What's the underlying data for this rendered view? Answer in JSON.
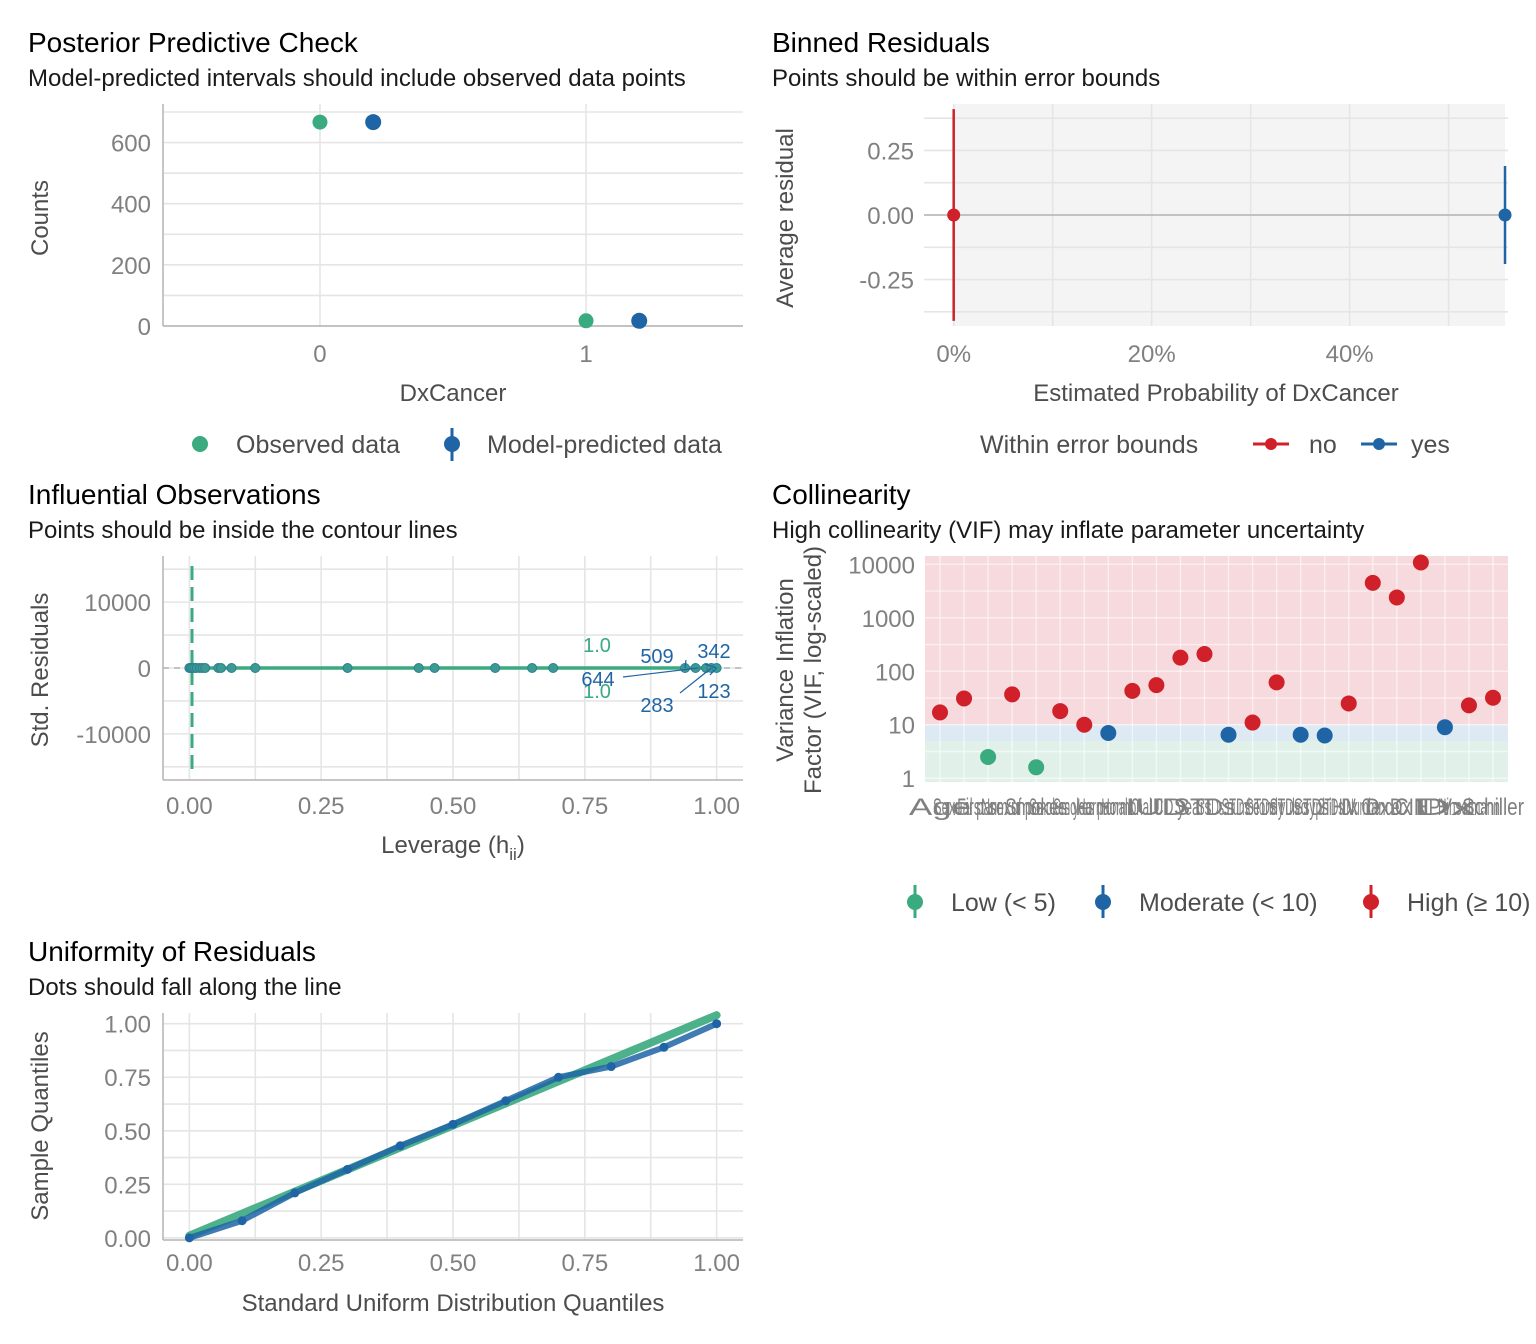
{
  "colors": {
    "green": "#3aaa7f",
    "blue": "#1f65a6",
    "red": "#d0202a",
    "grid": "#e5e5e5",
    "axis": "#b3b3b3",
    "high_zone": "#f7dadd",
    "moderate_zone": "#dde9f3",
    "low_zone": "#e1f1ea",
    "panel_bg": "#f4f4f4"
  },
  "chart_data": [
    {
      "id": "ppc",
      "type": "scatter",
      "title": "Posterior Predictive Check",
      "subtitle": "Model-predicted intervals should include observed data points",
      "xlabel": "DxCancer",
      "ylabel": "Counts",
      "categories": [
        "0",
        "1"
      ],
      "ylim": [
        0,
        700
      ],
      "yticks": [
        0,
        200,
        400,
        600
      ],
      "series": [
        {
          "name": "Observed data",
          "values": [
            667,
            17
          ]
        },
        {
          "name": "Model-predicted data",
          "values": [
            667,
            17
          ]
        }
      ],
      "legend": "bottom",
      "grid": true
    },
    {
      "id": "binned",
      "type": "scatter",
      "title": "Binned Residuals",
      "subtitle": "Points should be within error bounds",
      "xlabel": "Estimated Probability of DxCancer",
      "ylabel": "Average residual",
      "xlim": [
        -0.03,
        0.56
      ],
      "ylim": [
        -0.43,
        0.43
      ],
      "xticks": [
        0,
        0.2,
        0.4
      ],
      "xtick_labels": [
        "0%",
        "20%",
        "40%"
      ],
      "yticks": [
        -0.25,
        0,
        0.25
      ],
      "ytick_labels": [
        "-0.25",
        "0.00",
        "0.25"
      ],
      "legend_title": "Within error bounds",
      "legend_items": [
        "no",
        "yes"
      ],
      "points": [
        {
          "x": 0.0,
          "y": 0.0,
          "lower": -0.41,
          "upper": 0.41,
          "group": "no"
        },
        {
          "x": 0.557,
          "y": 0.0,
          "lower": -0.19,
          "upper": 0.19,
          "group": "yes"
        }
      ],
      "legend": "bottom",
      "grid": true
    },
    {
      "id": "influence",
      "type": "scatter",
      "title": "Influential Observations",
      "subtitle": "Points should be inside the contour lines",
      "xlabel": "Leverage (h",
      "xlabel_sub": "ii",
      "xlabel_end": ")",
      "ylabel": "Std. Residuals",
      "xlim": [
        -0.05,
        1.05
      ],
      "ylim": [
        -17000,
        17000
      ],
      "xticks": [
        0,
        0.25,
        0.5,
        0.75,
        1.0
      ],
      "xtick_labels": [
        "0.00",
        "0.25",
        "0.50",
        "0.75",
        "1.00"
      ],
      "yticks": [
        -10000,
        0,
        10000
      ],
      "ytick_labels": [
        "-10000",
        "0",
        "10000"
      ],
      "points_x": [
        0,
        0.003,
        0.006,
        0.01,
        0.014,
        0.02,
        0.025,
        0.03,
        0.055,
        0.06,
        0.08,
        0.125,
        0.3,
        0.435,
        0.465,
        0.58,
        0.65,
        0.69,
        0.94,
        0.96,
        0.98,
        0.99,
        1.0
      ],
      "points_y": [
        0,
        0,
        0,
        0,
        0,
        0,
        0,
        0,
        0,
        0,
        0,
        0,
        0,
        0,
        0,
        0,
        0,
        0,
        0,
        0,
        0,
        0,
        0
      ],
      "contour_labels": [
        "1.0",
        "1.0"
      ],
      "point_labels": [
        {
          "text": "509",
          "x": 0.94,
          "y": 0
        },
        {
          "text": "342",
          "x": 1.0,
          "y": 0
        },
        {
          "text": "644",
          "x": 0.965,
          "y": 0
        },
        {
          "text": "123",
          "x": 1.0,
          "y": 0
        },
        {
          "text": "283",
          "x": 0.99,
          "y": 0
        }
      ],
      "grid": true
    },
    {
      "id": "vif",
      "type": "scatter",
      "title": "Collinearity",
      "subtitle": "High collinearity (VIF) may inflate parameter uncertainty",
      "xlabel": "",
      "ylabel": "Variance Inflation Factor (VIF, log-scaled)",
      "ylabel_line1": "Variance Inflation",
      "ylabel_line2": "Factor (VIF, log-scaled)",
      "scale": "log",
      "ylim": [
        1,
        11000
      ],
      "yticks": [
        1,
        10,
        100,
        1000,
        10000
      ],
      "ytick_labels": [
        "1",
        "10",
        "100",
        "1000",
        "10000"
      ],
      "values": [
        17,
        31,
        2.5,
        37,
        1.6,
        18,
        10,
        7,
        43,
        55,
        180,
        210,
        6.5,
        11,
        62,
        6.5,
        6.3,
        25,
        4500,
        2400,
        10800,
        9,
        23,
        32
      ],
      "groups": [
        "High",
        "High",
        "Low",
        "High",
        "Low",
        "High",
        "High",
        "Moderate",
        "High",
        "High",
        "High",
        "High",
        "Moderate",
        "High",
        "High",
        "Moderate",
        "Moderate",
        "High",
        "High",
        "High",
        "High",
        "Moderate",
        "High",
        "High"
      ],
      "xtick_text": "Age; Sexual partners; First sexual intercourse; Num of pregnancies; Smokes; Smokes years; Smokes packs/year; Hormonal Contraceptives; Hormonal Contraceptives years; IUD; IUD years; STDs; STDs number; STDs condylomatosis; STDs vulvo-perineal condylomatosis; STDs syphilis; STDs HIV; STDs Number of diagnosis; Dx Cancer; Dx CIN; Dx HPV; Dx; Hinselmann; Schiller",
      "legend_items": [
        "Low (< 5)",
        "Moderate (< 10)",
        "High (≥ 10)"
      ],
      "legend": "bottom",
      "grid": true
    },
    {
      "id": "qq",
      "type": "line",
      "title": "Uniformity of Residuals",
      "subtitle": "Dots should fall along the line",
      "xlabel": "Standard Uniform Distribution Quantiles",
      "ylabel": "Sample Quantiles",
      "xlim": [
        -0.05,
        1.05
      ],
      "ylim": [
        -0.01,
        1.05
      ],
      "xticks": [
        0,
        0.25,
        0.5,
        0.75,
        1.0
      ],
      "xtick_labels": [
        "0.00",
        "0.25",
        "0.50",
        "0.75",
        "1.00"
      ],
      "yticks": [
        0,
        0.25,
        0.5,
        0.75,
        1.0
      ],
      "ytick_labels": [
        "0.00",
        "0.25",
        "0.50",
        "0.75",
        "1.00"
      ],
      "reference_line": [
        [
          0,
          0.01
        ],
        [
          1,
          1.04
        ]
      ],
      "sample_points": [
        [
          0,
          0.0
        ],
        [
          0.1,
          0.08
        ],
        [
          0.2,
          0.21
        ],
        [
          0.3,
          0.32
        ],
        [
          0.4,
          0.43
        ],
        [
          0.5,
          0.53
        ],
        [
          0.6,
          0.64
        ],
        [
          0.7,
          0.75
        ],
        [
          0.8,
          0.8
        ],
        [
          0.9,
          0.89
        ],
        [
          1.0,
          1.0
        ]
      ],
      "grid": true
    }
  ]
}
